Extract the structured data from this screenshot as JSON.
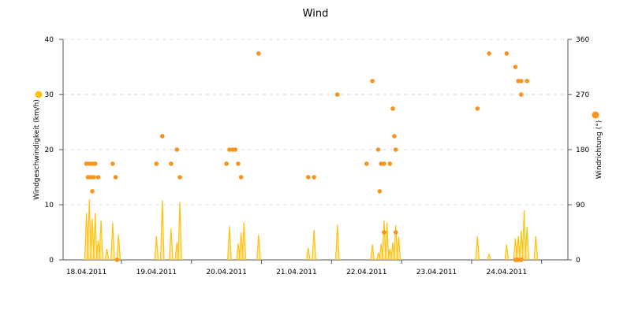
{
  "chart_data": {
    "type": "line+scatter",
    "title": "Wind",
    "x_axis": {
      "type": "date",
      "range": [
        "2011-04-17T16:00",
        "2011-04-24T21:00"
      ],
      "tick_labels": [
        "18.04.2011",
        "19.04.2011",
        "20.04.2011",
        "21.04.2011",
        "22.04.2011",
        "23.04.2011",
        "24.04.2011"
      ]
    },
    "y_left": {
      "label": "Windgeschwindigkeit (km/h)",
      "range": [
        0,
        40
      ],
      "ticks": [
        0,
        10,
        20,
        30,
        40
      ]
    },
    "y_right": {
      "label": "Windrichtung (°)",
      "range": [
        0,
        360
      ],
      "ticks": [
        0,
        90,
        180,
        270,
        360
      ]
    },
    "grid": {
      "horizontal": true,
      "style": "dashed"
    },
    "colors": {
      "speed": "#ffc20e",
      "direction": "#f7941d"
    },
    "series": [
      {
        "name": "Windgeschwindigkeit (km/h)",
        "type": "area-spikes",
        "axis": "left",
        "points": [
          [
            "2011-04-18T00:00",
            8.5
          ],
          [
            "2011-04-18T01:00",
            11.0
          ],
          [
            "2011-04-18T02:00",
            7.5
          ],
          [
            "2011-04-18T03:00",
            8.5
          ],
          [
            "2011-04-18T04:00",
            3.5
          ],
          [
            "2011-04-18T05:00",
            7.2
          ],
          [
            "2011-04-18T07:00",
            2.0
          ],
          [
            "2011-04-18T09:00",
            6.8
          ],
          [
            "2011-04-18T11:00",
            4.6
          ],
          [
            "2011-04-19T00:00",
            4.3
          ],
          [
            "2011-04-19T02:00",
            10.8
          ],
          [
            "2011-04-19T05:00",
            5.7
          ],
          [
            "2011-04-19T07:00",
            3.2
          ],
          [
            "2011-04-19T08:00",
            10.5
          ],
          [
            "2011-04-20T01:00",
            6.1
          ],
          [
            "2011-04-20T04:00",
            3.0
          ],
          [
            "2011-04-20T05:00",
            5.0
          ],
          [
            "2011-04-20T06:00",
            6.8
          ],
          [
            "2011-04-20T11:00",
            4.6
          ],
          [
            "2011-04-21T04:00",
            2.2
          ],
          [
            "2011-04-21T06:00",
            5.4
          ],
          [
            "2011-04-21T14:00",
            6.4
          ],
          [
            "2011-04-22T02:00",
            2.8
          ],
          [
            "2011-04-22T04:00",
            1.3
          ],
          [
            "2011-04-22T05:00",
            2.9
          ],
          [
            "2011-04-22T06:00",
            7.2
          ],
          [
            "2011-04-22T07:00",
            6.8
          ],
          [
            "2011-04-22T08:00",
            2.0
          ],
          [
            "2011-04-22T09:00",
            3.2
          ],
          [
            "2011-04-22T10:00",
            6.3
          ],
          [
            "2011-04-22T11:00",
            4.2
          ],
          [
            "2011-04-23T14:00",
            4.3
          ],
          [
            "2011-04-23T18:00",
            1.0
          ],
          [
            "2011-04-24T00:00",
            2.8
          ],
          [
            "2011-04-24T03:00",
            3.9
          ],
          [
            "2011-04-24T04:00",
            4.3
          ],
          [
            "2011-04-24T05:00",
            5.3
          ],
          [
            "2011-04-24T06:00",
            9.0
          ],
          [
            "2011-04-24T07:00",
            6.0
          ],
          [
            "2011-04-24T10:00",
            4.3
          ]
        ]
      },
      {
        "name": "Windrichtung (°)",
        "type": "scatter",
        "axis": "right",
        "points": [
          [
            "2011-04-18T00:00",
            157
          ],
          [
            "2011-04-18T00:30",
            135
          ],
          [
            "2011-04-18T01:00",
            157
          ],
          [
            "2011-04-18T01:30",
            135
          ],
          [
            "2011-04-18T02:00",
            157
          ],
          [
            "2011-04-18T02:00",
            112
          ],
          [
            "2011-04-18T02:30",
            135
          ],
          [
            "2011-04-18T03:00",
            157
          ],
          [
            "2011-04-18T04:00",
            135
          ],
          [
            "2011-04-18T09:00",
            157
          ],
          [
            "2011-04-18T10:00",
            135
          ],
          [
            "2011-04-18T10:30",
            0
          ],
          [
            "2011-04-19T00:00",
            157
          ],
          [
            "2011-04-19T02:00",
            202
          ],
          [
            "2011-04-19T05:00",
            157
          ],
          [
            "2011-04-19T07:00",
            180
          ],
          [
            "2011-04-19T08:00",
            135
          ],
          [
            "2011-04-20T00:00",
            157
          ],
          [
            "2011-04-20T01:00",
            180
          ],
          [
            "2011-04-20T02:00",
            180
          ],
          [
            "2011-04-20T03:00",
            180
          ],
          [
            "2011-04-20T04:00",
            157
          ],
          [
            "2011-04-20T05:00",
            135
          ],
          [
            "2011-04-20T11:00",
            337
          ],
          [
            "2011-04-21T04:00",
            135
          ],
          [
            "2011-04-21T06:00",
            135
          ],
          [
            "2011-04-21T14:00",
            270
          ],
          [
            "2011-04-22T00:00",
            157
          ],
          [
            "2011-04-22T02:00",
            292
          ],
          [
            "2011-04-22T04:00",
            180
          ],
          [
            "2011-04-22T04:30",
            112
          ],
          [
            "2011-04-22T05:00",
            157
          ],
          [
            "2011-04-22T06:00",
            157
          ],
          [
            "2011-04-22T06:00",
            45
          ],
          [
            "2011-04-22T08:00",
            157
          ],
          [
            "2011-04-22T09:00",
            247
          ],
          [
            "2011-04-22T09:30",
            202
          ],
          [
            "2011-04-22T10:00",
            180
          ],
          [
            "2011-04-22T10:00",
            45
          ],
          [
            "2011-04-23T14:00",
            247
          ],
          [
            "2011-04-23T18:00",
            337
          ],
          [
            "2011-04-24T00:00",
            337
          ],
          [
            "2011-04-24T03:00",
            315
          ],
          [
            "2011-04-24T04:00",
            292
          ],
          [
            "2011-04-24T05:00",
            292
          ],
          [
            "2011-04-24T05:00",
            270
          ],
          [
            "2011-04-24T07:00",
            292
          ],
          [
            "2011-04-24T03:00",
            0
          ],
          [
            "2011-04-24T04:00",
            0
          ],
          [
            "2011-04-24T05:00",
            0
          ],
          [
            "2011-04-24T03:30",
            0
          ]
        ]
      }
    ]
  }
}
